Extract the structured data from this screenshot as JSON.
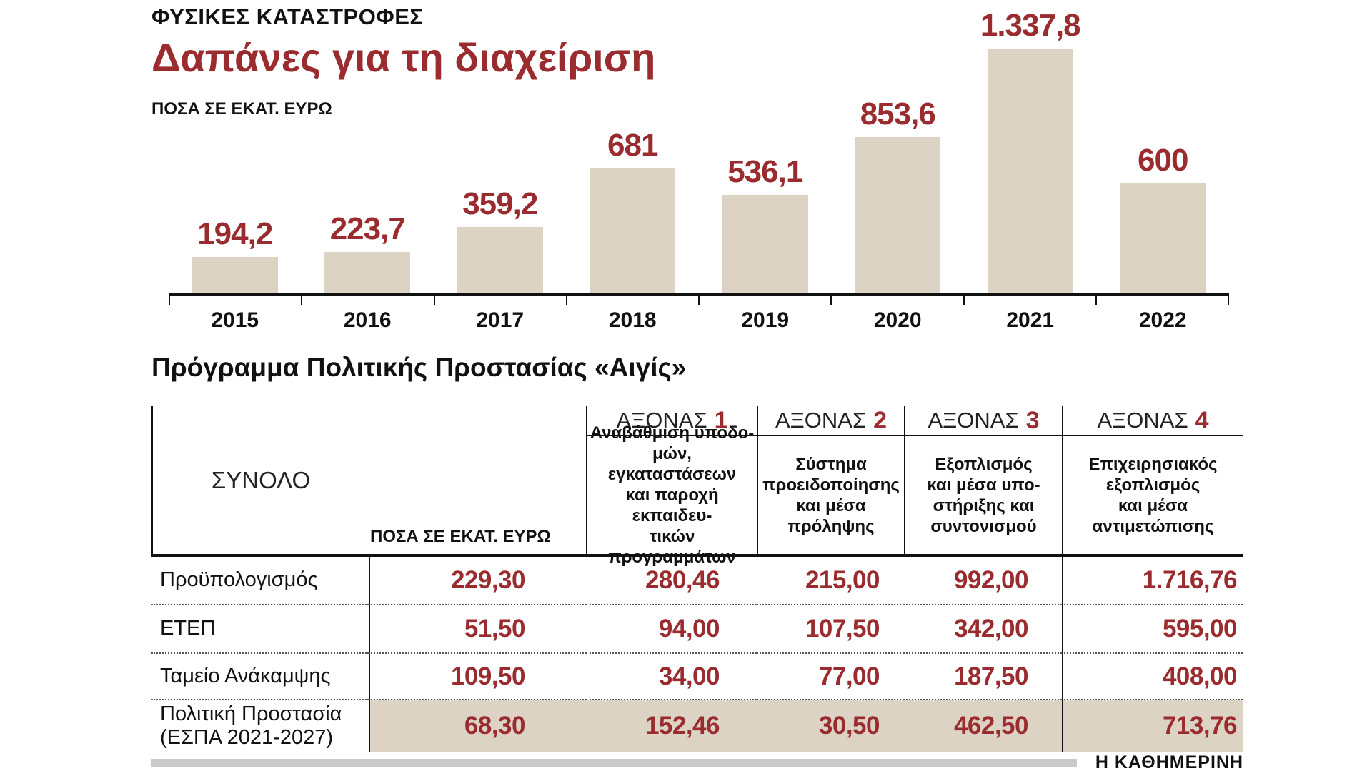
{
  "colors": {
    "accent": "#9a2b2e",
    "bar_fill": "#ddd3c4",
    "highlight_row": "#ddd3c4"
  },
  "header": {
    "kicker": "ΦΥΣΙΚΕΣ ΚΑΤΑΣΤΡΟΦΕΣ",
    "title": "Δαπάνες για τη διαχείριση",
    "unit_label": "ΠΟΣΑ ΣΕ ΕΚΑΤ. ΕΥΡΩ"
  },
  "chart_data": {
    "type": "bar",
    "categories": [
      "2015",
      "2016",
      "2017",
      "2018",
      "2019",
      "2020",
      "2021",
      "2022"
    ],
    "values": [
      194.2,
      223.7,
      359.2,
      681,
      536.1,
      853.6,
      1337.8,
      600
    ],
    "value_labels": [
      "194,2",
      "223,7",
      "359,2",
      "681",
      "536,1",
      "853,6",
      "1.337,8",
      "600"
    ],
    "title": "Δαπάνες για τη διαχείριση",
    "xlabel": "",
    "ylabel": "ΠΟΣΑ ΣΕ ΕΚΑΤ. ΕΥΡΩ",
    "ylim": [
      0,
      1400
    ],
    "grid": false,
    "legend": "none",
    "bar_color": "#ddd3c4",
    "label_color": "#9a2b2e"
  },
  "program_table": {
    "title": "Πρόγραμμα Πολιτικής Προστασίας «Αιγίς»",
    "unit_label": "ΠΟΣΑ ΣΕ ΕΚΑΤ. ΕΥΡΩ",
    "total_label": "ΣΥΝΟΛΟ",
    "axes": [
      {
        "word": "ΑΞΟΝΑΣ",
        "num": "1",
        "desc_lines": [
          "Αναβάθμιση υποδο-",
          "μών, εγκαταστάσεων",
          "και παροχή εκπαιδευ-",
          "τικών προγραμμάτων"
        ]
      },
      {
        "word": "ΑΞΟΝΑΣ",
        "num": "2",
        "desc_lines": [
          "Σύστημα",
          "προειδοποίησης",
          "και μέσα",
          "πρόληψης"
        ]
      },
      {
        "word": "ΑΞΟΝΑΣ",
        "num": "3",
        "desc_lines": [
          "Εξοπλισμός",
          "και μέσα υπο-",
          "στήριξης και",
          "συντονισμού"
        ]
      },
      {
        "word": "ΑΞΟΝΑΣ",
        "num": "4",
        "desc_lines": [
          "Επιχειρησιακός",
          "εξοπλισμός",
          "και μέσα",
          "αντιμετώπισης"
        ]
      }
    ],
    "rows": [
      {
        "label": "Προϋπολογισμός",
        "values": [
          "229,30",
          "280,46",
          "215,00",
          "992,00"
        ],
        "total": "1.716,76",
        "highlight": false
      },
      {
        "label": "ΕΤΕΠ",
        "values": [
          "51,50",
          "94,00",
          "107,50",
          "342,00"
        ],
        "total": "595,00",
        "highlight": false
      },
      {
        "label": "Ταμείο Ανάκαμψης",
        "values": [
          "109,50",
          "34,00",
          "77,00",
          "187,50"
        ],
        "total": "408,00",
        "highlight": false
      },
      {
        "label": "Πολιτική Προστασία\n(ΕΣΠΑ 2021-2027)",
        "values": [
          "68,30",
          "152,46",
          "30,50",
          "462,50"
        ],
        "total": "713,76",
        "highlight": true
      }
    ]
  },
  "footer": {
    "brand": "Η ΚΑΘΗΜΕΡΙΝΗ"
  }
}
